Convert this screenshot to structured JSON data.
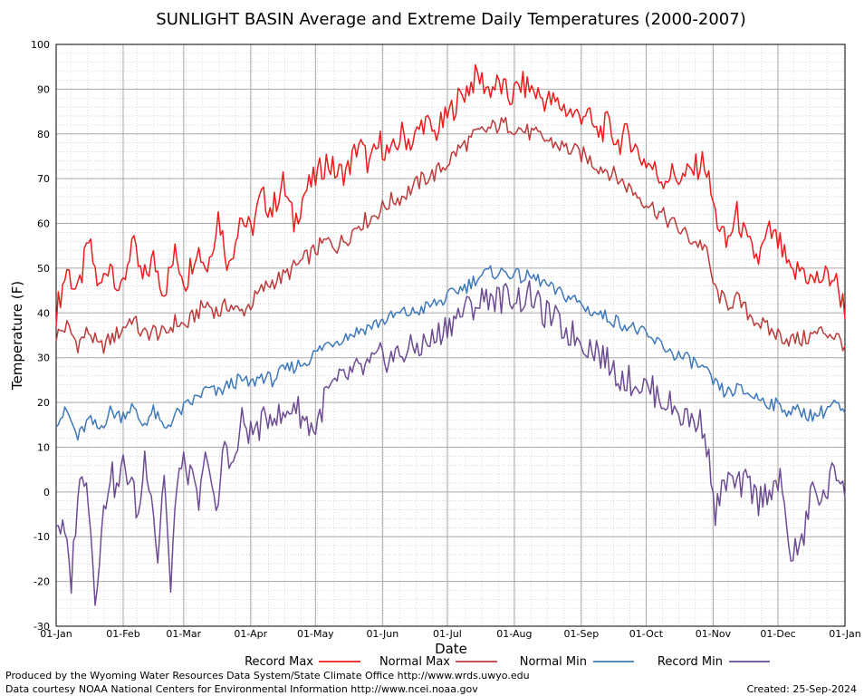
{
  "chart_data": {
    "type": "line",
    "title": "SUNLIGHT BASIN Average and Extreme Daily Temperatures (2000-2007)",
    "xlabel": "Date",
    "ylabel": "Temperature (F)",
    "ylim": [
      -30,
      100
    ],
    "xlim_days": [
      0,
      365
    ],
    "y_ticks": [
      -30,
      -20,
      -10,
      0,
      10,
      20,
      30,
      40,
      50,
      60,
      70,
      80,
      90,
      100
    ],
    "x_ticks": [
      {
        "label": "01-Jan",
        "day": 0
      },
      {
        "label": "01-Feb",
        "day": 31
      },
      {
        "label": "01-Mar",
        "day": 59
      },
      {
        "label": "01-Apr",
        "day": 90
      },
      {
        "label": "01-May",
        "day": 120
      },
      {
        "label": "01-Jun",
        "day": 151
      },
      {
        "label": "01-Jul",
        "day": 181
      },
      {
        "label": "01-Aug",
        "day": 212
      },
      {
        "label": "01-Sep",
        "day": 243
      },
      {
        "label": "01-Oct",
        "day": 273
      },
      {
        "label": "01-Nov",
        "day": 304
      },
      {
        "label": "01-Dec",
        "day": 334
      },
      {
        "label": "01-Jan",
        "day": 365
      }
    ],
    "grid": true,
    "legend_position": "bottom",
    "series": [
      {
        "name": "Record Max",
        "color": "#ee1c1c",
        "points": [
          [
            0,
            40
          ],
          [
            5,
            50
          ],
          [
            10,
            44
          ],
          [
            15,
            56
          ],
          [
            20,
            45
          ],
          [
            25,
            52
          ],
          [
            30,
            44
          ],
          [
            35,
            56
          ],
          [
            40,
            47
          ],
          [
            45,
            52
          ],
          [
            50,
            45
          ],
          [
            55,
            53
          ],
          [
            60,
            47
          ],
          [
            65,
            55
          ],
          [
            70,
            50
          ],
          [
            75,
            62
          ],
          [
            80,
            50
          ],
          [
            85,
            62
          ],
          [
            90,
            58
          ],
          [
            95,
            66
          ],
          [
            100,
            63
          ],
          [
            105,
            69
          ],
          [
            110,
            60
          ],
          [
            115,
            67
          ],
          [
            120,
            70
          ],
          [
            125,
            74
          ],
          [
            130,
            71
          ],
          [
            135,
            72
          ],
          [
            140,
            78
          ],
          [
            145,
            73
          ],
          [
            150,
            78
          ],
          [
            155,
            75
          ],
          [
            160,
            80
          ],
          [
            165,
            78
          ],
          [
            170,
            83
          ],
          [
            175,
            80
          ],
          [
            180,
            83
          ],
          [
            185,
            87
          ],
          [
            190,
            90
          ],
          [
            195,
            93
          ],
          [
            200,
            90
          ],
          [
            205,
            91
          ],
          [
            210,
            88
          ],
          [
            215,
            91
          ],
          [
            220,
            90
          ],
          [
            225,
            88
          ],
          [
            230,
            87
          ],
          [
            235,
            86
          ],
          [
            240,
            84
          ],
          [
            245,
            85
          ],
          [
            250,
            80
          ],
          [
            255,
            82
          ],
          [
            260,
            78
          ],
          [
            265,
            80
          ],
          [
            270,
            75
          ],
          [
            275,
            73
          ],
          [
            280,
            70
          ],
          [
            285,
            71
          ],
          [
            290,
            70
          ],
          [
            295,
            72
          ],
          [
            300,
            74
          ],
          [
            305,
            62
          ],
          [
            310,
            55
          ],
          [
            315,
            62
          ],
          [
            320,
            55
          ],
          [
            325,
            52
          ],
          [
            330,
            58
          ],
          [
            335,
            55
          ],
          [
            340,
            48
          ],
          [
            345,
            50
          ],
          [
            350,
            47
          ],
          [
            355,
            48
          ],
          [
            360,
            48
          ],
          [
            365,
            41
          ]
        ]
      },
      {
        "name": "Normal Max",
        "color": "#bc3c3c",
        "points": [
          [
            0,
            35
          ],
          [
            5,
            37
          ],
          [
            10,
            33
          ],
          [
            15,
            36
          ],
          [
            20,
            32
          ],
          [
            25,
            34
          ],
          [
            30,
            36
          ],
          [
            35,
            39
          ],
          [
            40,
            35
          ],
          [
            45,
            36
          ],
          [
            50,
            35
          ],
          [
            55,
            38
          ],
          [
            60,
            37
          ],
          [
            65,
            40
          ],
          [
            70,
            42
          ],
          [
            75,
            40
          ],
          [
            80,
            42
          ],
          [
            85,
            40
          ],
          [
            90,
            42
          ],
          [
            95,
            45
          ],
          [
            100,
            47
          ],
          [
            105,
            48
          ],
          [
            110,
            50
          ],
          [
            115,
            52
          ],
          [
            120,
            54
          ],
          [
            125,
            56
          ],
          [
            130,
            55
          ],
          [
            135,
            57
          ],
          [
            140,
            60
          ],
          [
            145,
            61
          ],
          [
            150,
            63
          ],
          [
            155,
            65
          ],
          [
            160,
            66
          ],
          [
            165,
            68
          ],
          [
            170,
            70
          ],
          [
            175,
            71
          ],
          [
            180,
            73
          ],
          [
            185,
            76
          ],
          [
            190,
            78
          ],
          [
            195,
            80
          ],
          [
            200,
            81
          ],
          [
            205,
            82
          ],
          [
            210,
            82
          ],
          [
            215,
            81
          ],
          [
            220,
            80
          ],
          [
            225,
            79
          ],
          [
            230,
            78
          ],
          [
            235,
            77
          ],
          [
            240,
            76
          ],
          [
            245,
            75
          ],
          [
            250,
            73
          ],
          [
            255,
            72
          ],
          [
            260,
            70
          ],
          [
            265,
            68
          ],
          [
            270,
            66
          ],
          [
            275,
            64
          ],
          [
            280,
            62
          ],
          [
            285,
            60
          ],
          [
            290,
            58
          ],
          [
            295,
            56
          ],
          [
            300,
            55
          ],
          [
            305,
            45
          ],
          [
            310,
            42
          ],
          [
            315,
            43
          ],
          [
            320,
            40
          ],
          [
            325,
            38
          ],
          [
            330,
            36
          ],
          [
            335,
            35
          ],
          [
            340,
            34
          ],
          [
            345,
            34
          ],
          [
            350,
            35
          ],
          [
            355,
            36
          ],
          [
            360,
            35
          ],
          [
            365,
            33
          ]
        ]
      },
      {
        "name": "Normal Min",
        "color": "#3f79bc",
        "points": [
          [
            0,
            16
          ],
          [
            5,
            18
          ],
          [
            10,
            12
          ],
          [
            15,
            16
          ],
          [
            20,
            14
          ],
          [
            25,
            18
          ],
          [
            30,
            17
          ],
          [
            35,
            19
          ],
          [
            40,
            15
          ],
          [
            45,
            18
          ],
          [
            50,
            14
          ],
          [
            55,
            17
          ],
          [
            60,
            19
          ],
          [
            65,
            21
          ],
          [
            70,
            23
          ],
          [
            75,
            22
          ],
          [
            80,
            24
          ],
          [
            85,
            25
          ],
          [
            90,
            24
          ],
          [
            95,
            26
          ],
          [
            100,
            25
          ],
          [
            105,
            27
          ],
          [
            110,
            28
          ],
          [
            115,
            29
          ],
          [
            120,
            31
          ],
          [
            125,
            33
          ],
          [
            130,
            34
          ],
          [
            135,
            35
          ],
          [
            140,
            36
          ],
          [
            145,
            37
          ],
          [
            150,
            38
          ],
          [
            155,
            39
          ],
          [
            160,
            40
          ],
          [
            165,
            40
          ],
          [
            170,
            41
          ],
          [
            175,
            42
          ],
          [
            180,
            43
          ],
          [
            185,
            45
          ],
          [
            190,
            46
          ],
          [
            195,
            48
          ],
          [
            200,
            49
          ],
          [
            205,
            49
          ],
          [
            210,
            49
          ],
          [
            215,
            48
          ],
          [
            220,
            48
          ],
          [
            225,
            47
          ],
          [
            230,
            45
          ],
          [
            235,
            44
          ],
          [
            240,
            43
          ],
          [
            245,
            41
          ],
          [
            250,
            40
          ],
          [
            255,
            39
          ],
          [
            260,
            38
          ],
          [
            265,
            37
          ],
          [
            270,
            36
          ],
          [
            275,
            34
          ],
          [
            280,
            33
          ],
          [
            285,
            31
          ],
          [
            290,
            30
          ],
          [
            295,
            29
          ],
          [
            300,
            27
          ],
          [
            305,
            24
          ],
          [
            310,
            22
          ],
          [
            315,
            23
          ],
          [
            320,
            22
          ],
          [
            325,
            21
          ],
          [
            330,
            20
          ],
          [
            335,
            19
          ],
          [
            340,
            18
          ],
          [
            345,
            18
          ],
          [
            350,
            17
          ],
          [
            355,
            18
          ],
          [
            360,
            20
          ],
          [
            365,
            17
          ]
        ]
      },
      {
        "name": "Record Min",
        "color": "#6e4c94",
        "points": [
          [
            0,
            -6
          ],
          [
            4,
            -10
          ],
          [
            7,
            -20
          ],
          [
            10,
            0
          ],
          [
            14,
            5
          ],
          [
            18,
            -23
          ],
          [
            22,
            -5
          ],
          [
            25,
            5
          ],
          [
            28,
            0
          ],
          [
            31,
            6
          ],
          [
            35,
            2
          ],
          [
            38,
            -6
          ],
          [
            41,
            8
          ],
          [
            44,
            1
          ],
          [
            47,
            -15
          ],
          [
            50,
            5
          ],
          [
            53,
            -23
          ],
          [
            56,
            4
          ],
          [
            60,
            6
          ],
          [
            63,
            2
          ],
          [
            66,
            -3
          ],
          [
            70,
            10
          ],
          [
            74,
            -7
          ],
          [
            78,
            12
          ],
          [
            82,
            5
          ],
          [
            86,
            16
          ],
          [
            90,
            13
          ],
          [
            95,
            15
          ],
          [
            100,
            18
          ],
          [
            105,
            16
          ],
          [
            110,
            20
          ],
          [
            115,
            16
          ],
          [
            120,
            14
          ],
          [
            125,
            22
          ],
          [
            130,
            24
          ],
          [
            135,
            26
          ],
          [
            140,
            27
          ],
          [
            145,
            28
          ],
          [
            150,
            30
          ],
          [
            155,
            30
          ],
          [
            160,
            31
          ],
          [
            165,
            32
          ],
          [
            170,
            33
          ],
          [
            175,
            34
          ],
          [
            180,
            37
          ],
          [
            185,
            39
          ],
          [
            190,
            41
          ],
          [
            195,
            42
          ],
          [
            200,
            44
          ],
          [
            205,
            43
          ],
          [
            210,
            44
          ],
          [
            215,
            43
          ],
          [
            220,
            44
          ],
          [
            225,
            40
          ],
          [
            230,
            39
          ],
          [
            235,
            36
          ],
          [
            240,
            35
          ],
          [
            245,
            33
          ],
          [
            250,
            32
          ],
          [
            255,
            29
          ],
          [
            260,
            26
          ],
          [
            265,
            25
          ],
          [
            270,
            24
          ],
          [
            275,
            23
          ],
          [
            280,
            21
          ],
          [
            285,
            19
          ],
          [
            290,
            17
          ],
          [
            295,
            16
          ],
          [
            300,
            15
          ],
          [
            305,
            -5
          ],
          [
            310,
            3
          ],
          [
            315,
            1
          ],
          [
            320,
            2
          ],
          [
            325,
            -2
          ],
          [
            330,
            1
          ],
          [
            335,
            2
          ],
          [
            340,
            -14
          ],
          [
            345,
            -12
          ],
          [
            350,
            1
          ],
          [
            355,
            -2
          ],
          [
            360,
            5
          ],
          [
            365,
            2
          ]
        ]
      }
    ]
  },
  "legend": [
    {
      "label": "Record Max",
      "color": "#ee1c1c"
    },
    {
      "label": "Normal Max",
      "color": "#bc3c3c"
    },
    {
      "label": "Normal Min",
      "color": "#3f79bc"
    },
    {
      "label": "Record Min",
      "color": "#6e4c94"
    }
  ],
  "footer": {
    "produced_by": "Produced by the Wyoming Water Resources Data System/State Climate Office http://www.wrds.uwyo.edu",
    "courtesy": "Data courtesy NOAA National Centers for Environmental Information http://www.ncei.noaa.gov",
    "created": "Created:  25-Sep-2024"
  }
}
